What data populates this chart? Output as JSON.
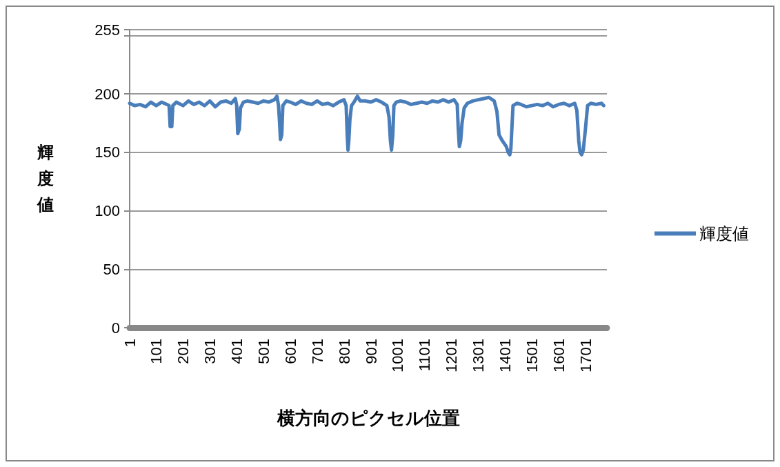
{
  "chart_data": {
    "type": "line",
    "xlabel": "横方向のピクセル位置",
    "ylabel": "輝度値",
    "x": [
      1,
      20,
      40,
      60,
      80,
      100,
      120,
      140,
      148,
      152,
      158,
      162,
      175,
      200,
      220,
      240,
      260,
      280,
      300,
      320,
      340,
      360,
      380,
      395,
      400,
      404,
      410,
      414,
      425,
      440,
      460,
      480,
      500,
      520,
      540,
      550,
      556,
      560,
      563,
      568,
      572,
      585,
      600,
      620,
      640,
      660,
      680,
      700,
      720,
      740,
      760,
      780,
      800,
      808,
      812,
      815,
      818,
      822,
      828,
      840,
      850,
      860,
      880,
      900,
      920,
      940,
      960,
      968,
      973,
      977,
      982,
      986,
      995,
      1010,
      1030,
      1050,
      1070,
      1090,
      1110,
      1130,
      1150,
      1170,
      1190,
      1210,
      1222,
      1226,
      1230,
      1235,
      1240,
      1248,
      1260,
      1280,
      1300,
      1320,
      1340,
      1360,
      1370,
      1378,
      1390,
      1405,
      1412,
      1418,
      1422,
      1430,
      1445,
      1460,
      1480,
      1500,
      1520,
      1540,
      1560,
      1580,
      1600,
      1620,
      1640,
      1660,
      1668,
      1675,
      1680,
      1686,
      1692,
      1700,
      1708,
      1720,
      1740,
      1760,
      1768
    ],
    "series": [
      {
        "name": "輝度値",
        "color": "#4a7ebb",
        "values": [
          192,
          190,
          191,
          189,
          193,
          190,
          193,
          191,
          190,
          172,
          172,
          190,
          193,
          190,
          194,
          191,
          193,
          190,
          194,
          189,
          193,
          194,
          192,
          196,
          190,
          166,
          170,
          188,
          193,
          194,
          193,
          192,
          194,
          193,
          195,
          198,
          190,
          175,
          161,
          165,
          190,
          194,
          193,
          191,
          194,
          192,
          191,
          194,
          191,
          192,
          190,
          193,
          195,
          190,
          165,
          152,
          160,
          178,
          190,
          194,
          198,
          194,
          194,
          193,
          195,
          193,
          190,
          180,
          160,
          152,
          165,
          190,
          193,
          194,
          193,
          191,
          192,
          193,
          192,
          194,
          193,
          195,
          193,
          195,
          191,
          170,
          155,
          160,
          175,
          188,
          192,
          194,
          195,
          196,
          197,
          194,
          185,
          165,
          160,
          155,
          150,
          148,
          153,
          190,
          192,
          191,
          189,
          190,
          191,
          190,
          192,
          189,
          191,
          192,
          190,
          192,
          186,
          160,
          150,
          148,
          152,
          170,
          190,
          192,
          191,
          192,
          190
        ]
      }
    ],
    "xlim": [
      1,
      1780
    ],
    "xticks": [
      1,
      101,
      201,
      301,
      401,
      501,
      601,
      701,
      801,
      901,
      1001,
      1101,
      1201,
      1301,
      1401,
      1501,
      1601,
      1701
    ],
    "ylim": [
      0,
      255
    ],
    "yticks": [
      0,
      50,
      100,
      150,
      200,
      255
    ],
    "grid": "y",
    "legend": "right",
    "marker": "none",
    "line_style": "solid"
  }
}
